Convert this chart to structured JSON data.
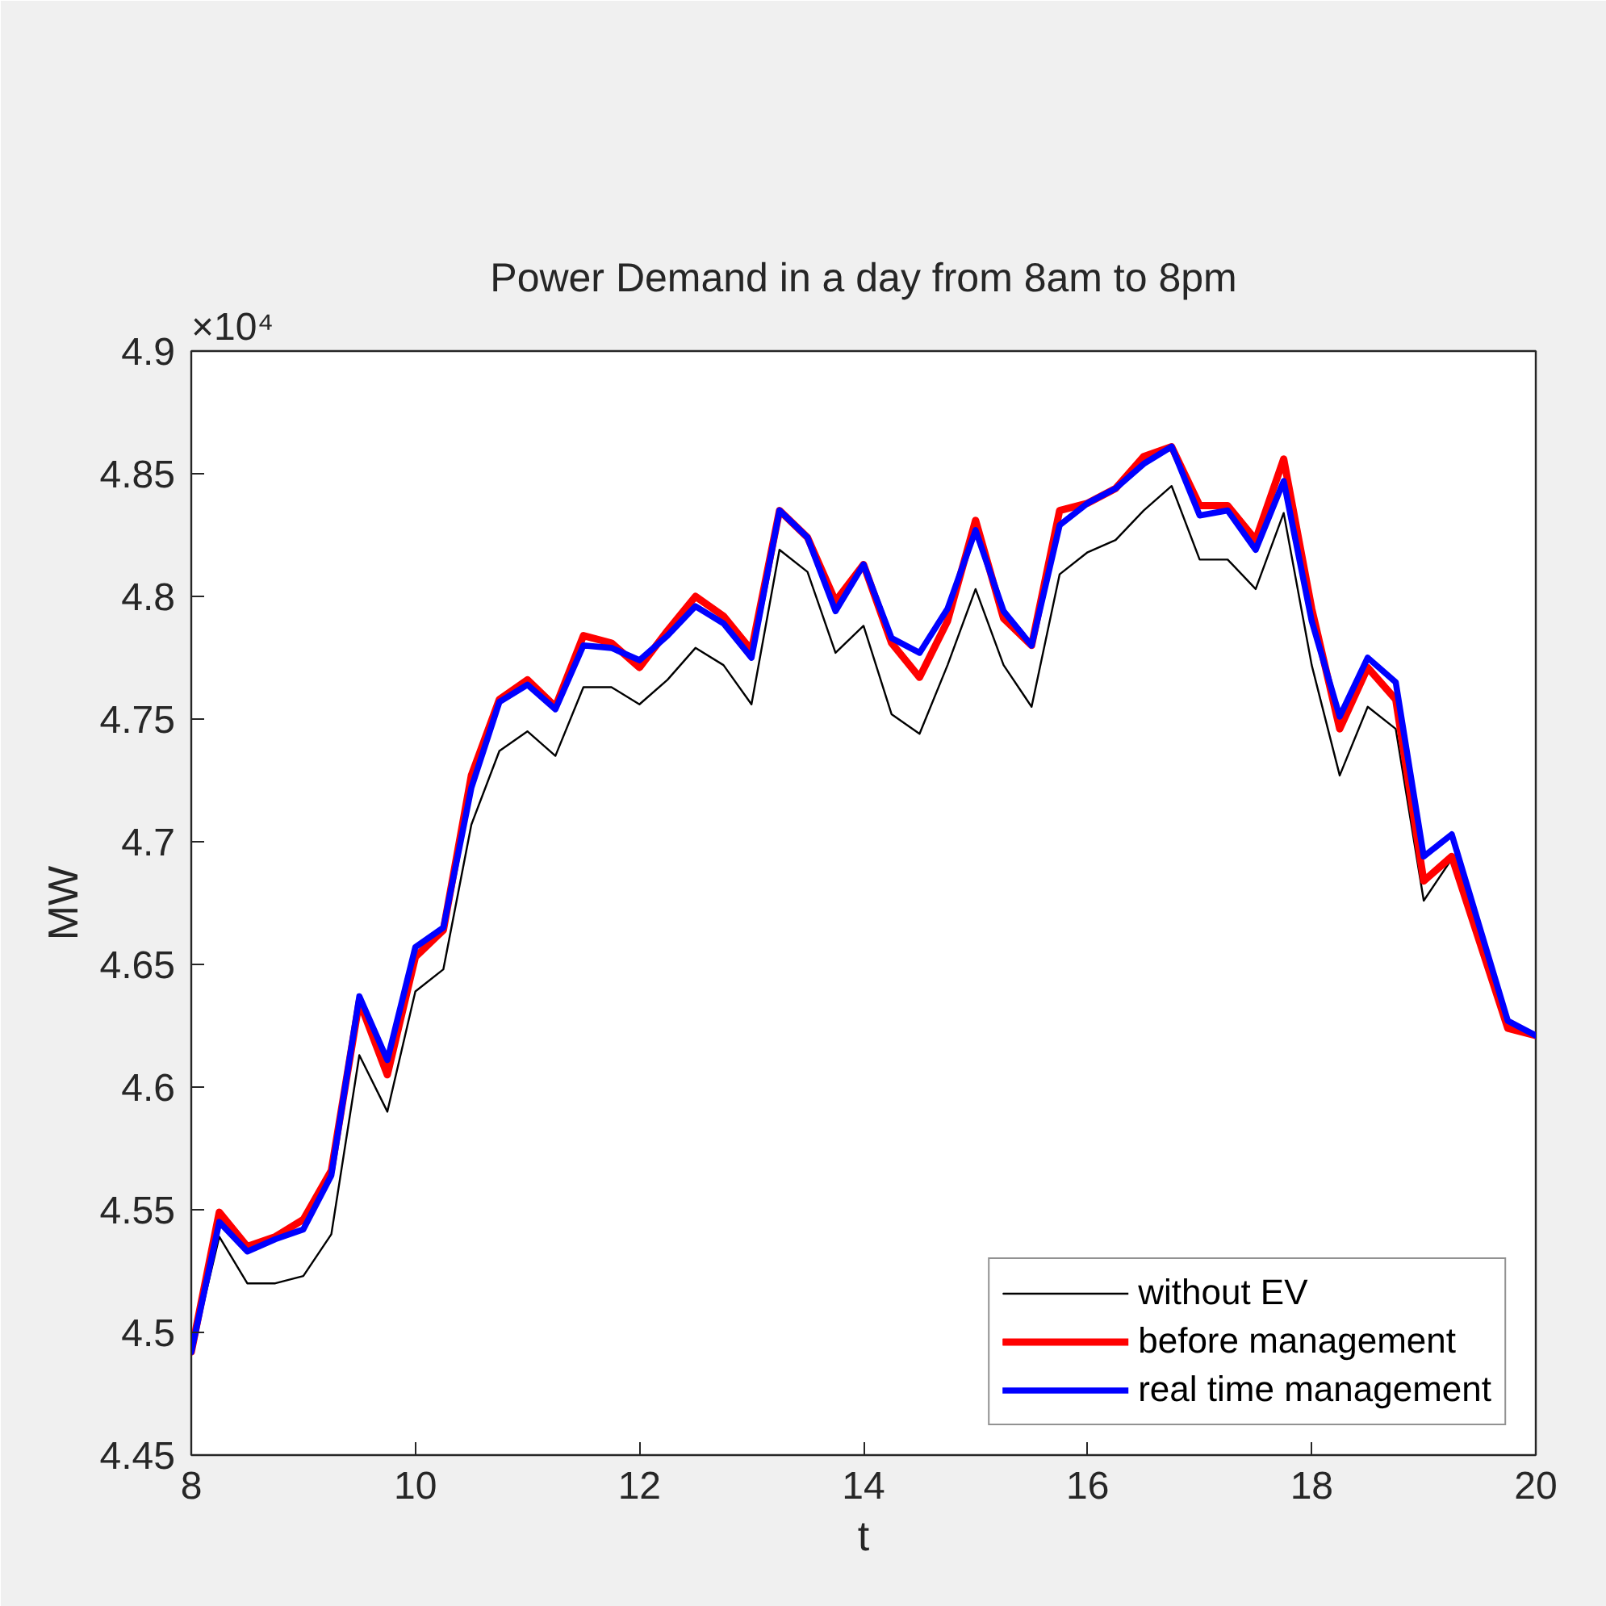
{
  "chart_data": {
    "type": "line",
    "title": "Power Demand in a day from 8am to 8pm",
    "xlabel": "t",
    "ylabel": "MW",
    "annotations": [
      "×10⁴"
    ],
    "x": [
      8,
      8.25,
      8.5,
      8.75,
      9,
      9.25,
      9.5,
      9.75,
      10,
      10.25,
      10.5,
      10.75,
      11,
      11.25,
      11.5,
      11.75,
      12,
      12.25,
      12.5,
      12.75,
      13,
      13.25,
      13.5,
      13.75,
      14,
      14.25,
      14.5,
      14.75,
      15,
      15.25,
      15.5,
      15.75,
      16,
      16.25,
      16.5,
      16.75,
      17,
      17.25,
      17.5,
      17.75,
      18,
      18.25,
      18.5,
      18.75,
      19,
      19.25,
      19.5,
      19.75,
      20
    ],
    "series": [
      {
        "name": "without EV",
        "color": "#000000",
        "values": [
          4.491,
          4.539,
          4.52,
          4.52,
          4.523,
          4.54,
          4.613,
          4.59,
          4.639,
          4.648,
          4.707,
          4.737,
          4.745,
          4.735,
          4.763,
          4.763,
          4.756,
          4.766,
          4.779,
          4.772,
          4.756,
          4.819,
          4.81,
          4.777,
          4.788,
          4.752,
          4.744,
          4.772,
          4.803,
          4.772,
          4.755,
          4.809,
          4.818,
          4.823,
          4.835,
          4.845,
          4.815,
          4.815,
          4.803,
          4.834,
          4.772,
          4.727,
          4.755,
          4.746,
          4.676,
          4.693,
          4.659,
          4.625,
          4.621
        ]
      },
      {
        "name": "before management",
        "color": "#ff0000",
        "values": [
          4.492,
          4.549,
          4.535,
          4.539,
          4.546,
          4.566,
          4.635,
          4.605,
          4.653,
          4.664,
          4.727,
          4.758,
          4.766,
          4.755,
          4.784,
          4.781,
          4.771,
          4.786,
          4.8,
          4.792,
          4.778,
          4.835,
          4.824,
          4.798,
          4.813,
          4.781,
          4.767,
          4.79,
          4.831,
          4.791,
          4.78,
          4.835,
          4.838,
          4.844,
          4.857,
          4.861,
          4.837,
          4.837,
          4.823,
          4.856,
          4.795,
          4.746,
          4.771,
          4.758,
          4.684,
          4.694,
          4.659,
          4.624,
          4.621
        ]
      },
      {
        "name": "real time management",
        "color": "#0000ff",
        "values": [
          4.492,
          4.545,
          4.533,
          4.538,
          4.542,
          4.564,
          4.637,
          4.611,
          4.657,
          4.665,
          4.722,
          4.757,
          4.764,
          4.754,
          4.78,
          4.779,
          4.774,
          4.784,
          4.796,
          4.789,
          4.775,
          4.835,
          4.824,
          4.794,
          4.813,
          4.783,
          4.777,
          4.795,
          4.827,
          4.794,
          4.78,
          4.829,
          4.838,
          4.844,
          4.854,
          4.861,
          4.833,
          4.835,
          4.819,
          4.847,
          4.79,
          4.751,
          4.775,
          4.765,
          4.694,
          4.703,
          4.665,
          4.627,
          4.621
        ]
      }
    ],
    "xlim": [
      8,
      20
    ],
    "xticks": [
      8,
      10,
      12,
      14,
      16,
      18,
      20
    ],
    "ylim": [
      4.45,
      4.9
    ],
    "yticks": [
      4.45,
      4.5,
      4.55,
      4.6,
      4.65,
      4.7,
      4.75,
      4.8,
      4.85,
      4.9
    ],
    "legend": "bottom right",
    "line_style": "solid"
  }
}
